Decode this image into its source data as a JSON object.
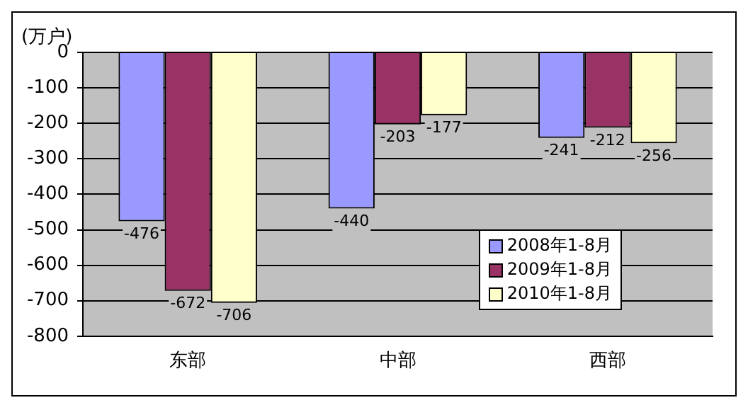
{
  "chart_data": {
    "type": "bar",
    "ylabel": "(万户)",
    "categories": [
      "东部",
      "中部",
      "西部"
    ],
    "series": [
      {
        "name": "2008年1-8月",
        "color": "#9999ff",
        "values": [
          -476,
          -440,
          -241
        ]
      },
      {
        "name": "2009年1-8月",
        "color": "#993366",
        "values": [
          -672,
          -203,
          -212
        ]
      },
      {
        "name": "2010年1-8月",
        "color": "#ffffcc",
        "values": [
          -706,
          -177,
          -256
        ]
      }
    ],
    "ylim": [
      -800,
      0
    ],
    "yticks": [
      -800,
      -700,
      -600,
      -500,
      -400,
      -300,
      -200,
      -100,
      0
    ],
    "grid": "y",
    "legend": "bottom right",
    "data_labels": true
  }
}
